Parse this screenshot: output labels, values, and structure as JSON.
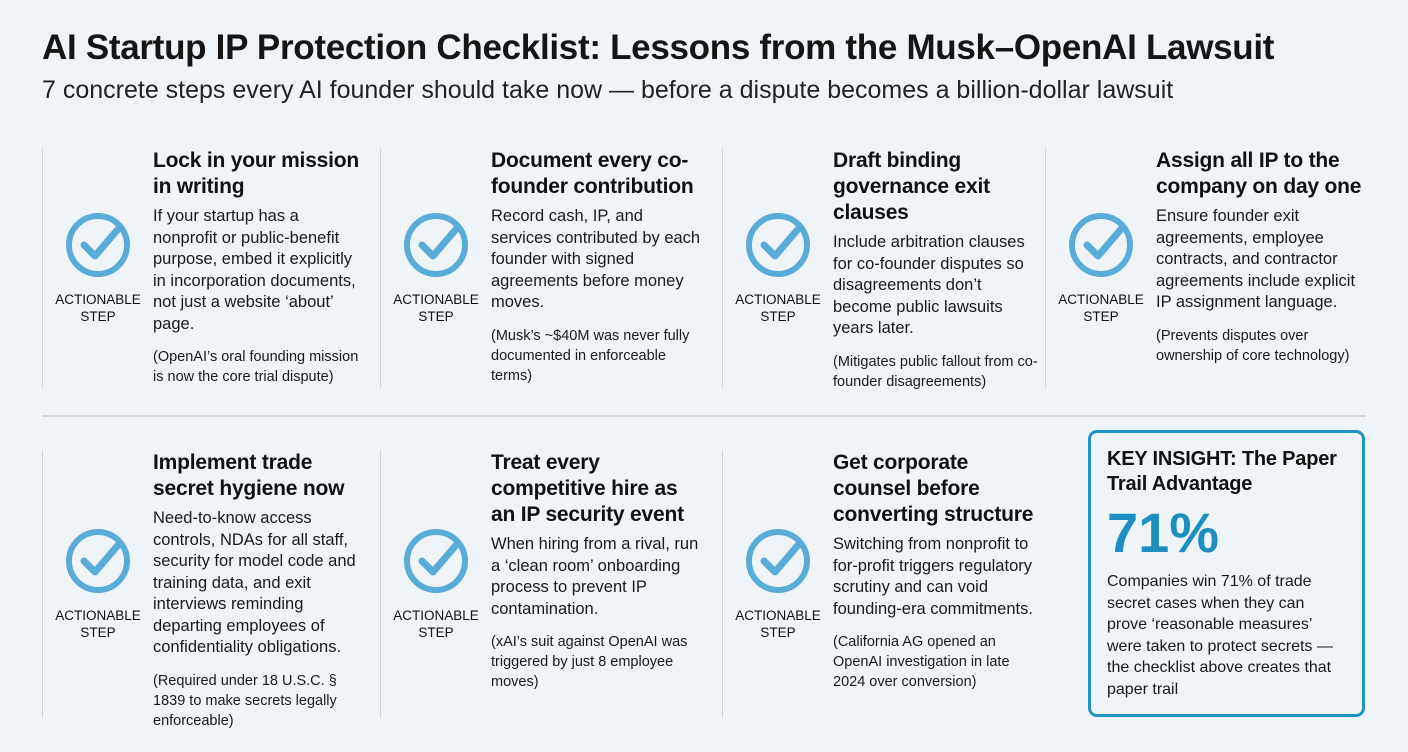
{
  "title": "AI Startup IP Protection Checklist: Lessons from the Musk–OpenAI Lawsuit",
  "subtitle": "7 concrete steps every AI founder should take now — before a dispute becomes a billion-dollar lawsuit",
  "icon_color": "#5aacd8",
  "accent_color": "#1c8fc0",
  "steps": [
    {
      "tag": "ACTIONABLE STEP",
      "icon": "check-circle-icon",
      "title": "Lock in your mission in writing",
      "body": "If your startup has a nonprofit or public-benefit purpose, embed it explicitly in incorporation documents, not just a website ‘about’ page.",
      "note": "(OpenAI’s oral founding mission is now the core trial dispute)"
    },
    {
      "tag": "ACTIONABLE STEP",
      "icon": "check-circle-icon",
      "title": "Document every co-founder contribution",
      "body": "Record cash, IP, and services contributed by each founder with signed agreements before money moves.",
      "note": "(Musk’s ~$40M was never fully documented in enforceable terms)"
    },
    {
      "tag": "ACTIONABLE STEP",
      "icon": "check-circle-icon",
      "title": "Draft binding governance exit clauses",
      "body": "Include arbitration clauses for co-founder disputes so disagreements don’t become public lawsuits years later.",
      "note": "(Mitigates public fallout from co-founder disagreements)"
    },
    {
      "tag": "ACTIONABLE STEP",
      "icon": "check-circle-icon",
      "title": "Assign all IP to the company on day one",
      "body": "Ensure founder exit agreements, employee contracts, and contractor agreements include explicit IP assignment language.",
      "note": "(Prevents disputes over ownership of core technology)"
    },
    {
      "tag": "ACTIONABLE STEP",
      "icon": "check-circle-icon",
      "title": "Implement trade secret hygiene now",
      "body": "Need-to-know access controls, NDAs for all staff, security for model code and training data, and exit interviews reminding departing employees of confidentiality obligations.",
      "note": "(Required under 18 U.S.C. § 1839 to make secrets legally enforceable)"
    },
    {
      "tag": "ACTIONABLE STEP",
      "icon": "check-circle-icon",
      "title": "Treat every competitive hire as an IP security event",
      "body": "When hiring from a rival, run a ‘clean room’ onboarding process to prevent IP contamination.",
      "note": "(xAI’s suit against OpenAI was triggered by just 8 employee moves)"
    },
    {
      "tag": "ACTIONABLE STEP",
      "icon": "check-circle-icon",
      "title": "Get corporate counsel before converting structure",
      "body": "Switching from nonprofit to for-profit triggers regulatory scrutiny and can void founding-era commitments.",
      "note": "(California AG opened an OpenAI investigation in late 2024 over conversion)"
    }
  ],
  "insight": {
    "title": "KEY INSIGHT: The Paper Trail Advantage",
    "stat": "71%",
    "body": "Companies win 71% of trade secret cases when they can prove ‘reasonable measures’ were taken to protect secrets — the checklist above creates that paper trail"
  }
}
